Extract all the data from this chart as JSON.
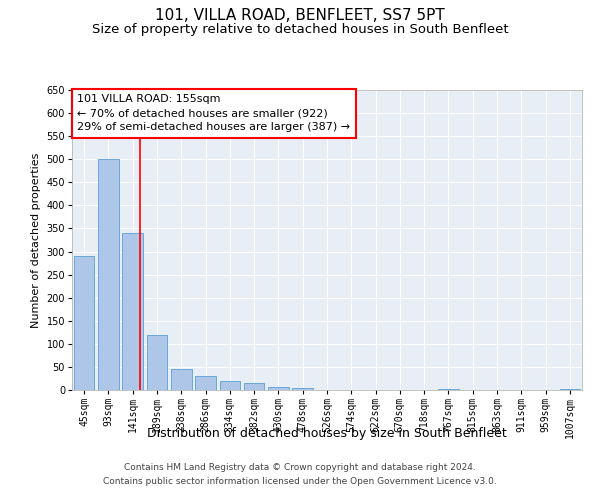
{
  "title": "101, VILLA ROAD, BENFLEET, SS7 5PT",
  "subtitle": "Size of property relative to detached houses in South Benfleet",
  "xlabel": "Distribution of detached houses by size in South Benfleet",
  "ylabel": "Number of detached properties",
  "footer1": "Contains HM Land Registry data © Crown copyright and database right 2024.",
  "footer2": "Contains public sector information licensed under the Open Government Licence v3.0.",
  "categories": [
    "45sqm",
    "93sqm",
    "141sqm",
    "189sqm",
    "238sqm",
    "286sqm",
    "334sqm",
    "382sqm",
    "430sqm",
    "478sqm",
    "526sqm",
    "574sqm",
    "622sqm",
    "670sqm",
    "718sqm",
    "767sqm",
    "815sqm",
    "863sqm",
    "911sqm",
    "959sqm",
    "1007sqm"
  ],
  "values": [
    290,
    500,
    340,
    120,
    45,
    30,
    20,
    15,
    7,
    5,
    0,
    0,
    0,
    0,
    0,
    2,
    0,
    0,
    0,
    0,
    2
  ],
  "bar_color": "#aec6e8",
  "bar_edge_color": "#5a9fd4",
  "background_color": "#e8eef5",
  "grid_color": "#ffffff",
  "annotation_box_text1": "101 VILLA ROAD: 155sqm",
  "annotation_box_text2": "← 70% of detached houses are smaller (922)",
  "annotation_box_text3": "29% of semi-detached houses are larger (387) →",
  "annotation_box_color": "white",
  "annotation_box_edge_color": "red",
  "vline_color": "red",
  "ylim": [
    0,
    650
  ],
  "yticks": [
    0,
    50,
    100,
    150,
    200,
    250,
    300,
    350,
    400,
    450,
    500,
    550,
    600,
    650
  ],
  "title_fontsize": 11,
  "subtitle_fontsize": 9.5,
  "xlabel_fontsize": 9,
  "ylabel_fontsize": 8,
  "tick_fontsize": 7,
  "annotation_fontsize": 8
}
